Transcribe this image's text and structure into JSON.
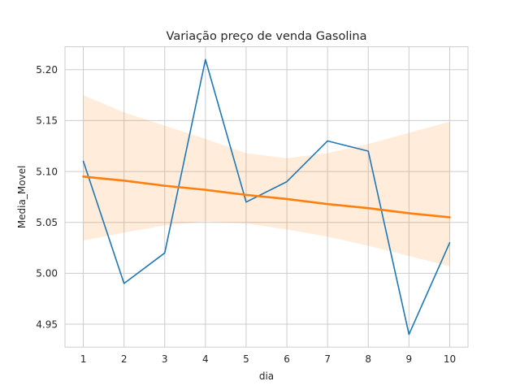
{
  "chart_data": {
    "type": "line",
    "title": "Variação preço de venda Gasolina",
    "xlabel": "dia",
    "ylabel": "Media_Movel",
    "x": [
      1,
      2,
      3,
      4,
      5,
      6,
      7,
      8,
      9,
      10
    ],
    "xticks": [
      "1",
      "2",
      "3",
      "4",
      "5",
      "6",
      "7",
      "8",
      "9",
      "10"
    ],
    "yticks": [
      "4.95",
      "5.00",
      "5.05",
      "5.10",
      "5.15",
      "5.20"
    ],
    "xlim": [
      0.55,
      10.45
    ],
    "ylim": [
      4.9275,
      5.2225
    ],
    "grid": true,
    "series": [
      {
        "values": [
          5.11,
          4.99,
          5.02,
          5.21,
          5.07,
          5.09,
          5.13,
          5.12,
          4.94,
          5.03
        ],
        "color": "#1f77b4"
      },
      {
        "values": [
          5.095,
          5.091,
          5.086,
          5.082,
          5.077,
          5.073,
          5.068,
          5.064,
          5.059,
          5.055
        ],
        "color": "#ff7f0e"
      }
    ],
    "confidence_band": {
      "color": "#ff7f0e",
      "x": [
        1,
        2,
        3,
        4,
        5,
        6,
        7,
        8,
        9,
        10
      ],
      "upper": [
        5.175,
        5.158,
        5.145,
        5.132,
        5.118,
        5.113,
        5.118,
        5.127,
        5.138,
        5.149
      ],
      "lower": [
        5.032,
        5.04,
        5.047,
        5.051,
        5.049,
        5.043,
        5.036,
        5.027,
        5.017,
        5.007
      ]
    }
  }
}
